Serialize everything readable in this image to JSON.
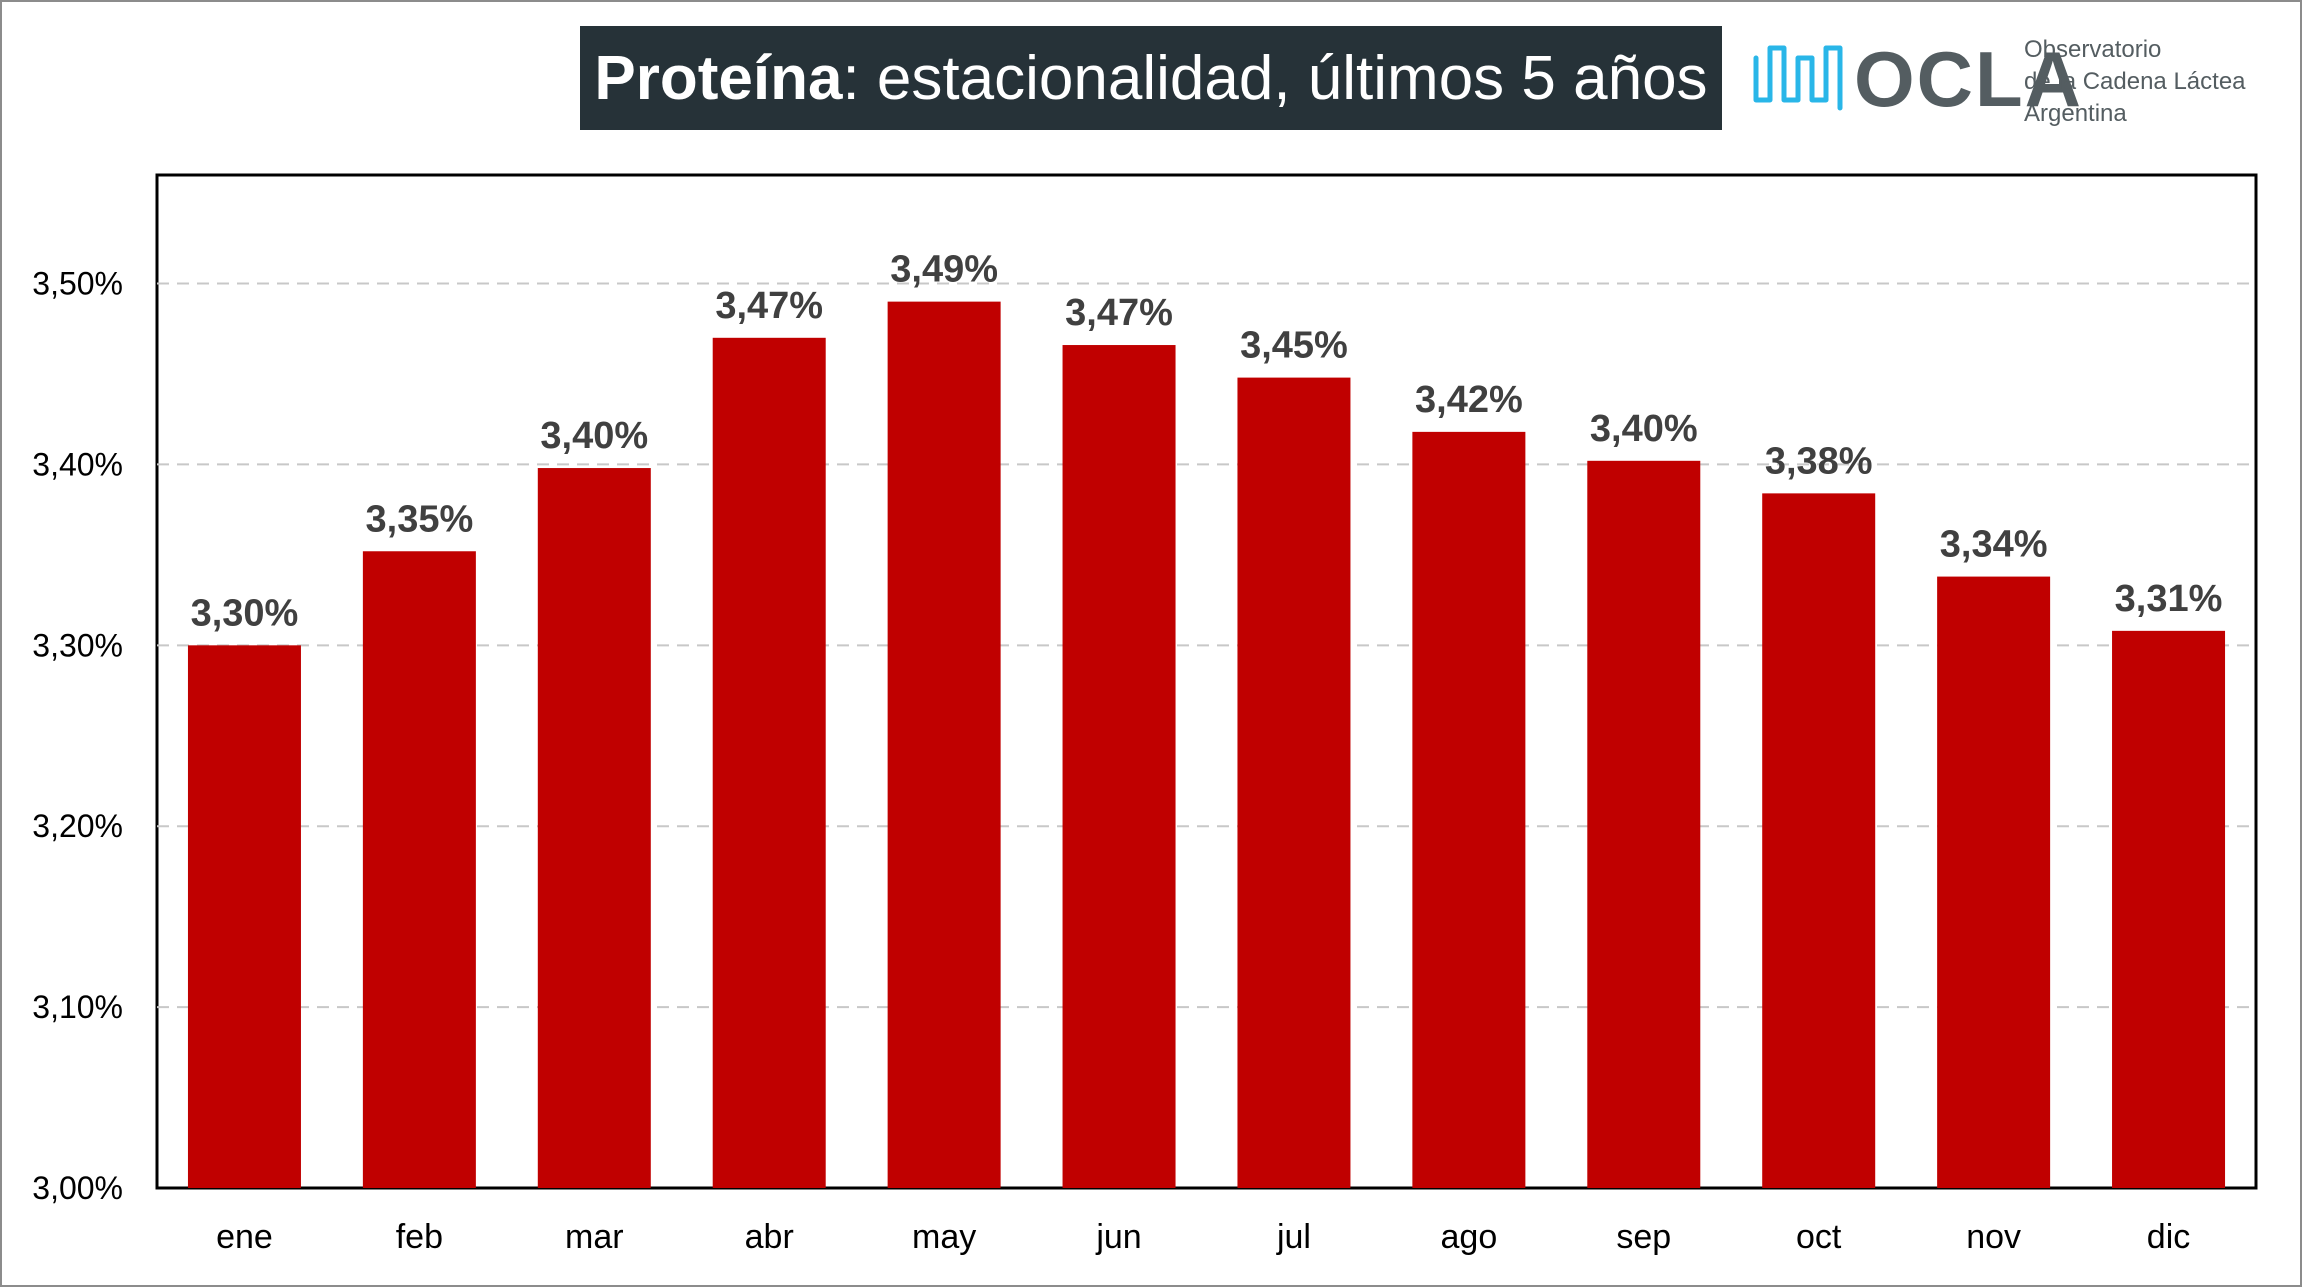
{
  "header": {
    "title_bold": "Proteína",
    "title_rest": ": estacionalidad, últimos 5 años"
  },
  "logo": {
    "brand": "OCLA",
    "line1": "Observatorio",
    "line2": "de la Cadena Láctea",
    "line3": "Argentina",
    "accent_color": "#29b6e8",
    "text_color": "#545d61"
  },
  "chart_data": {
    "type": "bar",
    "title": "Proteína: estacionalidad, últimos 5 años",
    "categories": [
      "ene",
      "feb",
      "mar",
      "abr",
      "may",
      "jun",
      "jul",
      "ago",
      "sep",
      "oct",
      "nov",
      "dic"
    ],
    "values": [
      3.3,
      3.352,
      3.398,
      3.47,
      3.49,
      3.466,
      3.448,
      3.418,
      3.402,
      3.384,
      3.338,
      3.308
    ],
    "data_labels": [
      "3,30%",
      "3,35%",
      "3,40%",
      "3,47%",
      "3,49%",
      "3,47%",
      "3,45%",
      "3,42%",
      "3,40%",
      "3,38%",
      "3,34%",
      "3,31%"
    ],
    "ylim": [
      3.0,
      3.56
    ],
    "yticks": [
      3.0,
      3.1,
      3.2,
      3.3,
      3.4,
      3.5
    ],
    "ytick_labels": [
      "3,00%",
      "3,10%",
      "3,20%",
      "3,30%",
      "3,40%",
      "3,50%"
    ],
    "xlabel": "",
    "ylabel": "",
    "grid": "horizontal-dashed",
    "bar_color": "#c00000",
    "label_color": "#404040"
  }
}
